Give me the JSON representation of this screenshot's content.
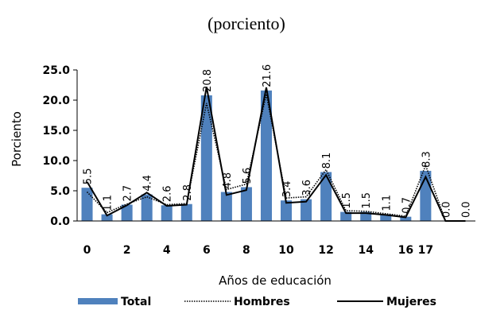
{
  "chart_data": {
    "type": "bar",
    "title": "(porciento)",
    "xlabel": "Años de educación",
    "ylabel": "Porciento",
    "ylim": [
      0,
      25
    ],
    "yticks": [
      "0.0",
      "5.0",
      "10.0",
      "15.0",
      "20.0",
      "25.0"
    ],
    "categories": [
      "0",
      "1",
      "2",
      "3",
      "4",
      "5",
      "6",
      "7",
      "8",
      "9",
      "10",
      "11",
      "12",
      "13",
      "14",
      "15",
      "16",
      "17",
      "18",
      "19"
    ],
    "xtick_labels": [
      "0",
      "",
      "2",
      "",
      "4",
      "",
      "6",
      "",
      "8",
      "",
      "10",
      "",
      "12",
      "",
      "14",
      "",
      "16",
      "17",
      "",
      ""
    ],
    "data_labels": [
      "5.5",
      "1.1",
      "2.7",
      "4.4",
      "2.6",
      "2.8",
      "20.8",
      "4.8",
      "5.6",
      "21.6",
      "3.4",
      "3.6",
      "8.1",
      "1.5",
      "1.5",
      "1.1",
      "0.7",
      "8.3",
      "0.0",
      "0.0"
    ],
    "series": [
      {
        "name": "Total",
        "kind": "bar",
        "color": "#4F81BD",
        "values": [
          5.5,
          1.1,
          2.7,
          4.4,
          2.6,
          2.8,
          20.8,
          4.8,
          5.6,
          21.6,
          3.4,
          3.6,
          8.1,
          1.5,
          1.5,
          1.1,
          0.7,
          8.3,
          0.0,
          0.0
        ]
      },
      {
        "name": "Hombres",
        "kind": "dotted-line",
        "color": "#000000",
        "values": [
          4.8,
          1.4,
          2.8,
          4.0,
          2.7,
          2.9,
          19.5,
          5.2,
          6.1,
          21.0,
          3.8,
          4.0,
          8.5,
          1.7,
          1.6,
          1.2,
          0.8,
          9.2,
          0.0,
          0.0
        ]
      },
      {
        "name": "Mujeres",
        "kind": "line",
        "color": "#000000",
        "values": [
          6.5,
          0.9,
          2.6,
          4.7,
          2.5,
          2.7,
          22.2,
          4.3,
          5.1,
          22.1,
          3.0,
          3.2,
          7.6,
          1.3,
          1.3,
          1.0,
          0.6,
          7.3,
          0.0,
          0.0
        ]
      }
    ],
    "grid": false,
    "legend_position": "bottom"
  }
}
